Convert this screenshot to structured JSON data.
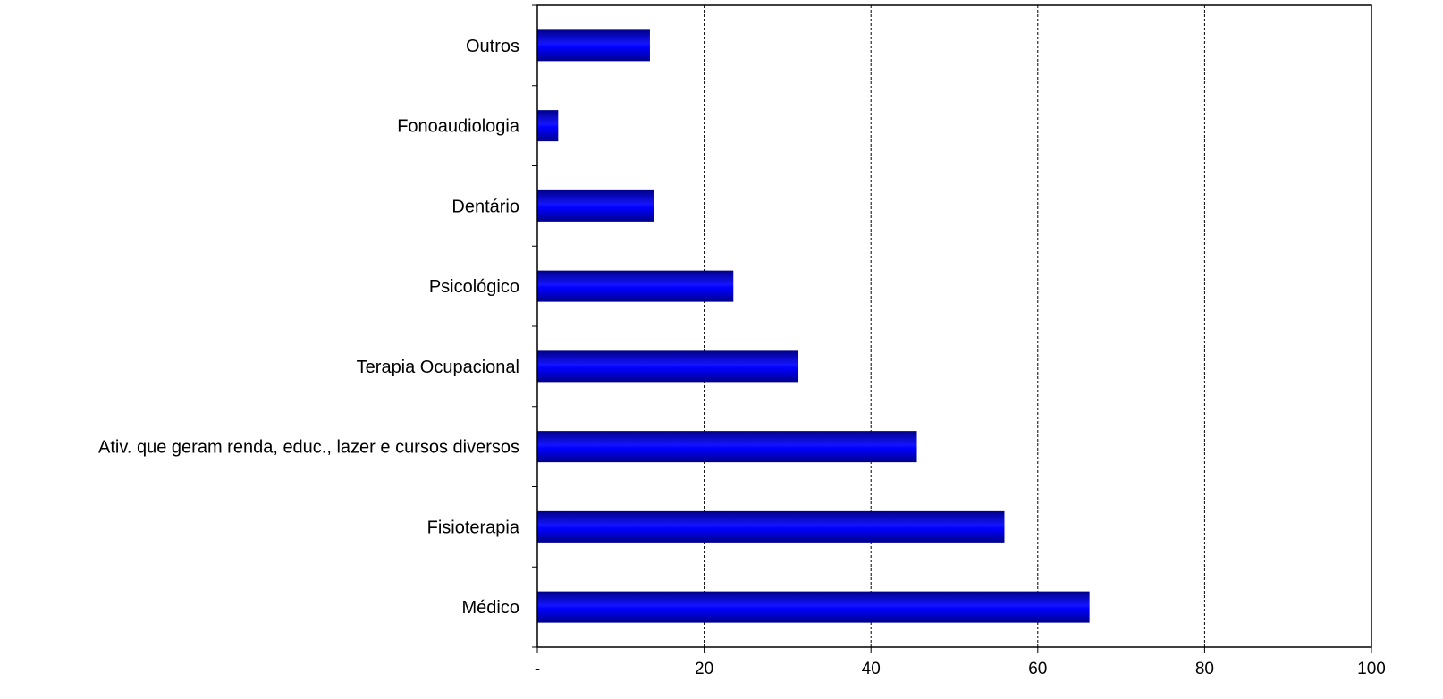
{
  "chart_data": {
    "type": "bar",
    "orientation": "horizontal",
    "categories": [
      "Outros",
      "Fonoaudiologia",
      "Dentário",
      "Psicológico",
      "Terapia Ocupacional",
      "Ativ. que geram renda, educ., lazer e cursos diversos",
      "Fisioterapia",
      "Médico"
    ],
    "values": [
      13.5,
      2.5,
      14,
      23.5,
      31.3,
      45.5,
      56,
      66.2
    ],
    "xlim": [
      0,
      100
    ],
    "x_ticks": [
      0,
      20,
      40,
      60,
      80,
      100
    ],
    "x_tick_labels": [
      "-",
      "20",
      "40",
      "60",
      "80",
      "100"
    ],
    "title": "",
    "xlabel": "",
    "ylabel": "",
    "grid": "vertical dashed",
    "legend": "none",
    "colors": {
      "bar_dark": "#00008a",
      "bar_mid": "#0000ff",
      "bar_light": "#1414ff",
      "axis": "#000000",
      "grid": "#000000"
    }
  }
}
